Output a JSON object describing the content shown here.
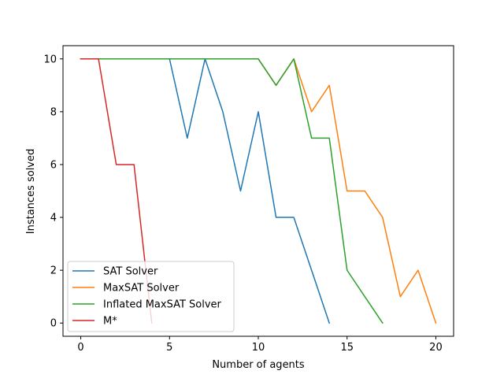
{
  "chart_data": {
    "type": "line",
    "title": "",
    "xlabel": "Number of agents",
    "ylabel": "Instances solved",
    "xlim": [
      -1,
      21
    ],
    "ylim": [
      -0.5,
      10.5
    ],
    "xticks": [
      0,
      5,
      10,
      15,
      20
    ],
    "yticks": [
      0,
      2,
      4,
      6,
      8,
      10
    ],
    "grid": false,
    "legend_position": "lower-left",
    "series": [
      {
        "name": "SAT Solver",
        "color": "#1f77b4",
        "x": [
          0,
          1,
          2,
          3,
          4,
          5,
          6,
          7,
          8,
          9,
          10,
          11,
          12,
          13,
          14
        ],
        "y": [
          10,
          10,
          10,
          10,
          10,
          10,
          7,
          10,
          8,
          5,
          8,
          4,
          4,
          2,
          0
        ]
      },
      {
        "name": "MaxSAT Solver",
        "color": "#ff7f0e",
        "x": [
          0,
          1,
          2,
          3,
          4,
          5,
          6,
          7,
          8,
          9,
          10,
          11,
          12,
          13,
          14,
          15,
          16,
          17,
          18,
          19,
          20
        ],
        "y": [
          10,
          10,
          10,
          10,
          10,
          10,
          10,
          10,
          10,
          10,
          10,
          9,
          10,
          8,
          9,
          5,
          5,
          4,
          1,
          2,
          0
        ]
      },
      {
        "name": "Inflated MaxSAT Solver",
        "color": "#2ca02c",
        "x": [
          0,
          1,
          2,
          3,
          4,
          5,
          6,
          7,
          8,
          9,
          10,
          11,
          12,
          13,
          14,
          15,
          16,
          17
        ],
        "y": [
          10,
          10,
          10,
          10,
          10,
          10,
          10,
          10,
          10,
          10,
          10,
          9,
          10,
          7,
          7,
          2,
          1,
          0
        ]
      },
      {
        "name": "M*",
        "color": "#d62728",
        "x": [
          0,
          1,
          2,
          3,
          4
        ],
        "y": [
          10,
          10,
          6,
          6,
          0
        ]
      }
    ]
  }
}
